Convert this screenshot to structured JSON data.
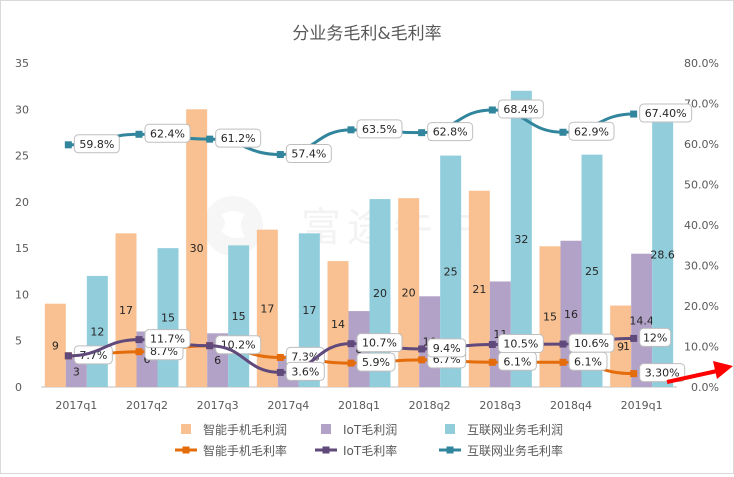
{
  "chart_data": {
    "type": "bar",
    "title": "分业务毛利&毛利率",
    "categories": [
      "2017q1",
      "2017q2",
      "2017q3",
      "2017q4",
      "2018q1",
      "2018q2",
      "2018q3",
      "2018q4",
      "2019q1"
    ],
    "ylim": [
      0,
      35
    ],
    "yticks": [
      "0",
      "5",
      "10",
      "15",
      "20",
      "25",
      "30",
      "35"
    ],
    "y2lim": [
      0,
      80
    ],
    "y2ticks": [
      "0.0%",
      "10.0%",
      "20.0%",
      "30.0%",
      "40.0%",
      "50.0%",
      "60.0%",
      "70.0%",
      "80.0%"
    ],
    "grid": false,
    "legend_position": "bottom",
    "bar_series": [
      {
        "name": "智能手机毛利润",
        "color": "#f9c191",
        "values": [
          9,
          16.6,
          30,
          17,
          13.6,
          20.4,
          21.2,
          15.2,
          8.8
        ],
        "labels": [
          "9",
          "17",
          "30",
          "17",
          "14",
          "20",
          "21",
          "15",
          "9"
        ]
      },
      {
        "name": "IoT毛利润",
        "color": "#b3a2c8",
        "values": [
          3.3,
          6,
          5.8,
          3.4,
          8.2,
          9.8,
          11.4,
          15.8,
          14.4
        ],
        "labels": [
          "3",
          "6",
          "6",
          "",
          "8",
          "10",
          "11",
          "16",
          "14.4"
        ]
      },
      {
        "name": "互联网业务毛利润",
        "color": "#92cddc",
        "values": [
          12,
          15,
          15.3,
          16.6,
          20.3,
          25,
          32,
          25.1,
          28.6
        ],
        "labels": [
          "12",
          "15",
          "15",
          "17",
          "20",
          "25",
          "32",
          "25",
          "28.6"
        ]
      }
    ],
    "line_series": [
      {
        "name": "智能手机毛利率",
        "color": "#e46c0a",
        "values": [
          7.7,
          8.7,
          10.2,
          7.3,
          5.9,
          6.7,
          6.1,
          6.1,
          3.3
        ],
        "labels": [
          "7.7%",
          "8.7%",
          "10.2%",
          "7.3%",
          "5.9%",
          "6.7%",
          "6.1%",
          "6.1%",
          "3.30%"
        ]
      },
      {
        "name": "IoT毛利率",
        "color": "#604a7b",
        "values": [
          7.7,
          11.7,
          10.2,
          3.6,
          10.7,
          9.4,
          10.5,
          10.6,
          12
        ],
        "labels": [
          "",
          "11.7%",
          "",
          "3.6%",
          "10.7%",
          "9.4%",
          "10.5%",
          "10.6%",
          "12%"
        ]
      },
      {
        "name": "互联网业务毛利率",
        "color": "#31859c",
        "values": [
          59.8,
          62.4,
          61.2,
          57.4,
          63.5,
          62.8,
          68.4,
          62.9,
          67.4
        ],
        "labels": [
          "59.8%",
          "62.4%",
          "61.2%",
          "57.4%",
          "63.5%",
          "62.8%",
          "68.4%",
          "62.9%",
          "67.40%"
        ]
      }
    ],
    "annotations": [
      "1"
    ]
  },
  "watermark": "富途牛牛"
}
